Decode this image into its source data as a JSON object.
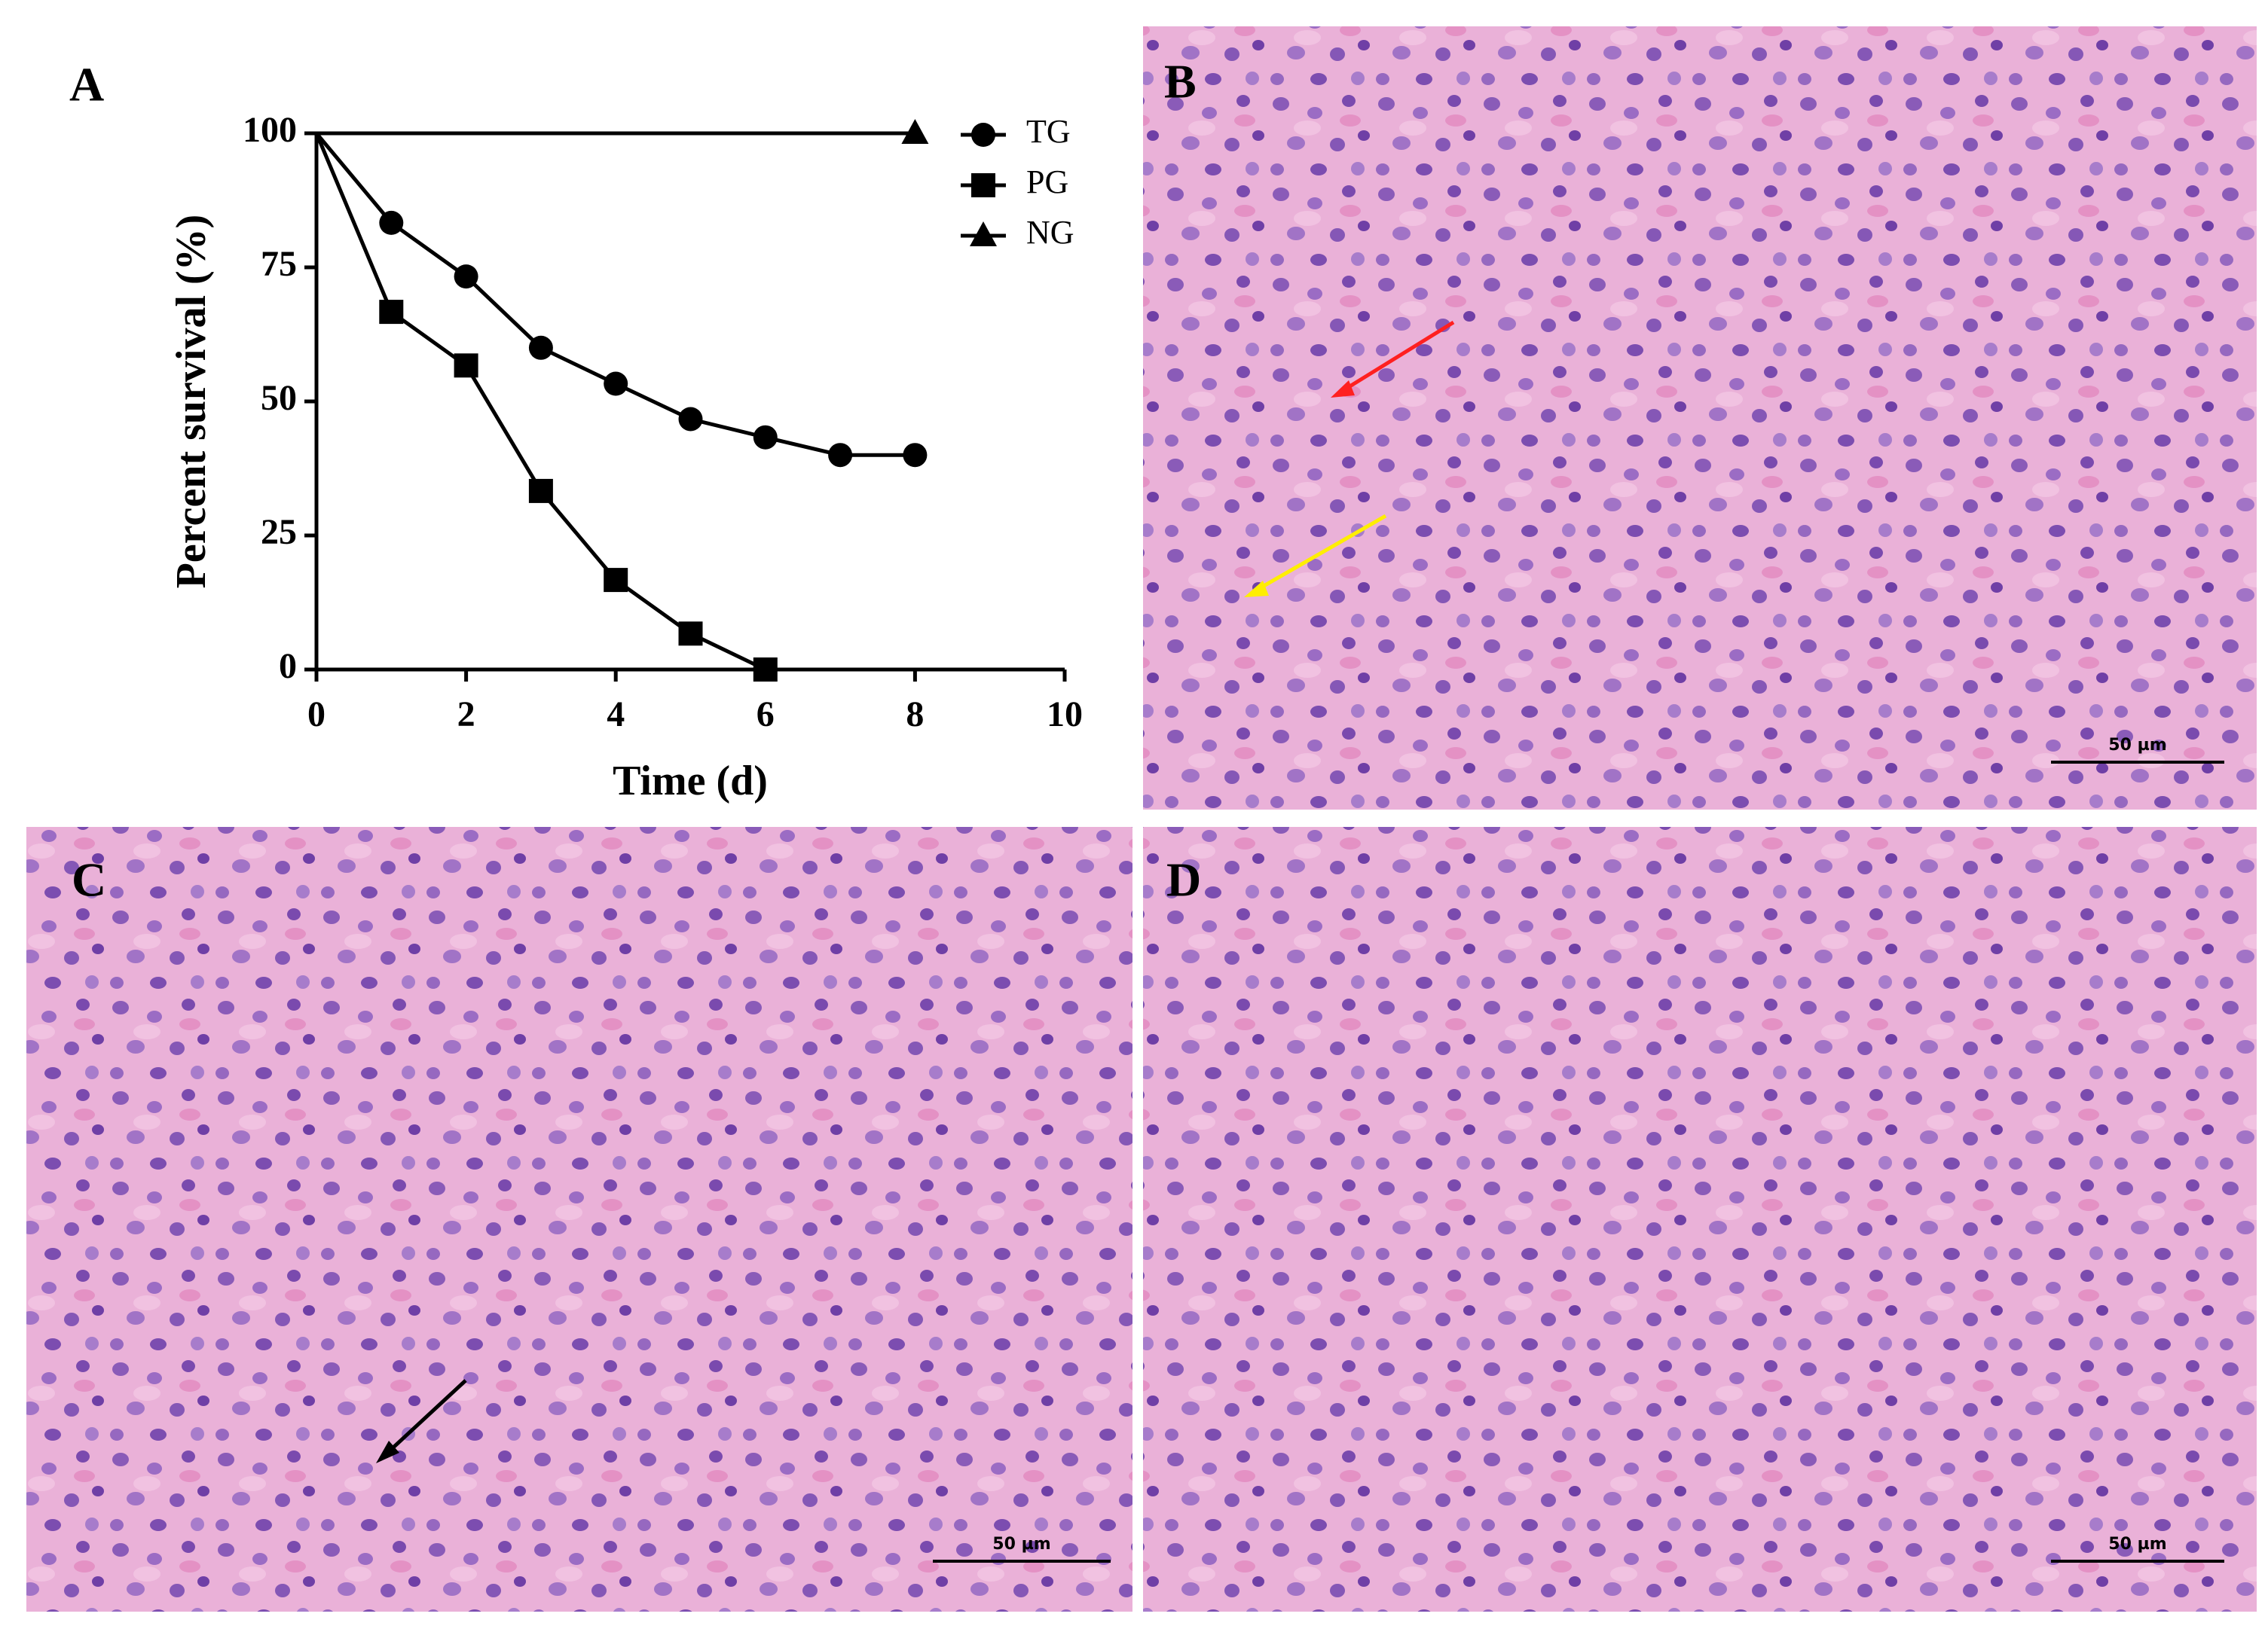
{
  "chart_data": {
    "type": "line",
    "x_label": "Time (d)",
    "y_label": "Percent survival (%)",
    "xlim": [
      0,
      10
    ],
    "xticks": [
      0,
      2,
      4,
      6,
      8,
      10
    ],
    "ylim": [
      0,
      100
    ],
    "yticks": [
      0,
      25,
      50,
      75,
      100
    ],
    "grid": false,
    "legend": "upper right",
    "series": [
      {
        "name": "TG",
        "color": "#000000",
        "marker": "circle",
        "x": [
          0,
          1,
          2,
          3,
          4,
          5,
          6,
          7,
          8
        ],
        "values": [
          100,
          83.3,
          73.3,
          60,
          53.3,
          46.7,
          43.3,
          40,
          40
        ]
      },
      {
        "name": "PG",
        "color": "#000000",
        "marker": "square",
        "x": [
          0,
          1,
          2,
          3,
          4,
          5,
          6
        ],
        "values": [
          100,
          66.7,
          56.7,
          33.3,
          16.7,
          6.7,
          0
        ]
      },
      {
        "name": "NG",
        "color": "#000000",
        "marker": "triangle",
        "x": [
          0,
          8
        ],
        "values": [
          100,
          100
        ]
      }
    ]
  },
  "panels": [
    {
      "label": "A"
    },
    {
      "label": "B",
      "scale_bar": "50 µm"
    },
    {
      "label": "C",
      "scale_bar": "50 µm"
    },
    {
      "label": "D",
      "scale_bar": "50 µm"
    }
  ]
}
